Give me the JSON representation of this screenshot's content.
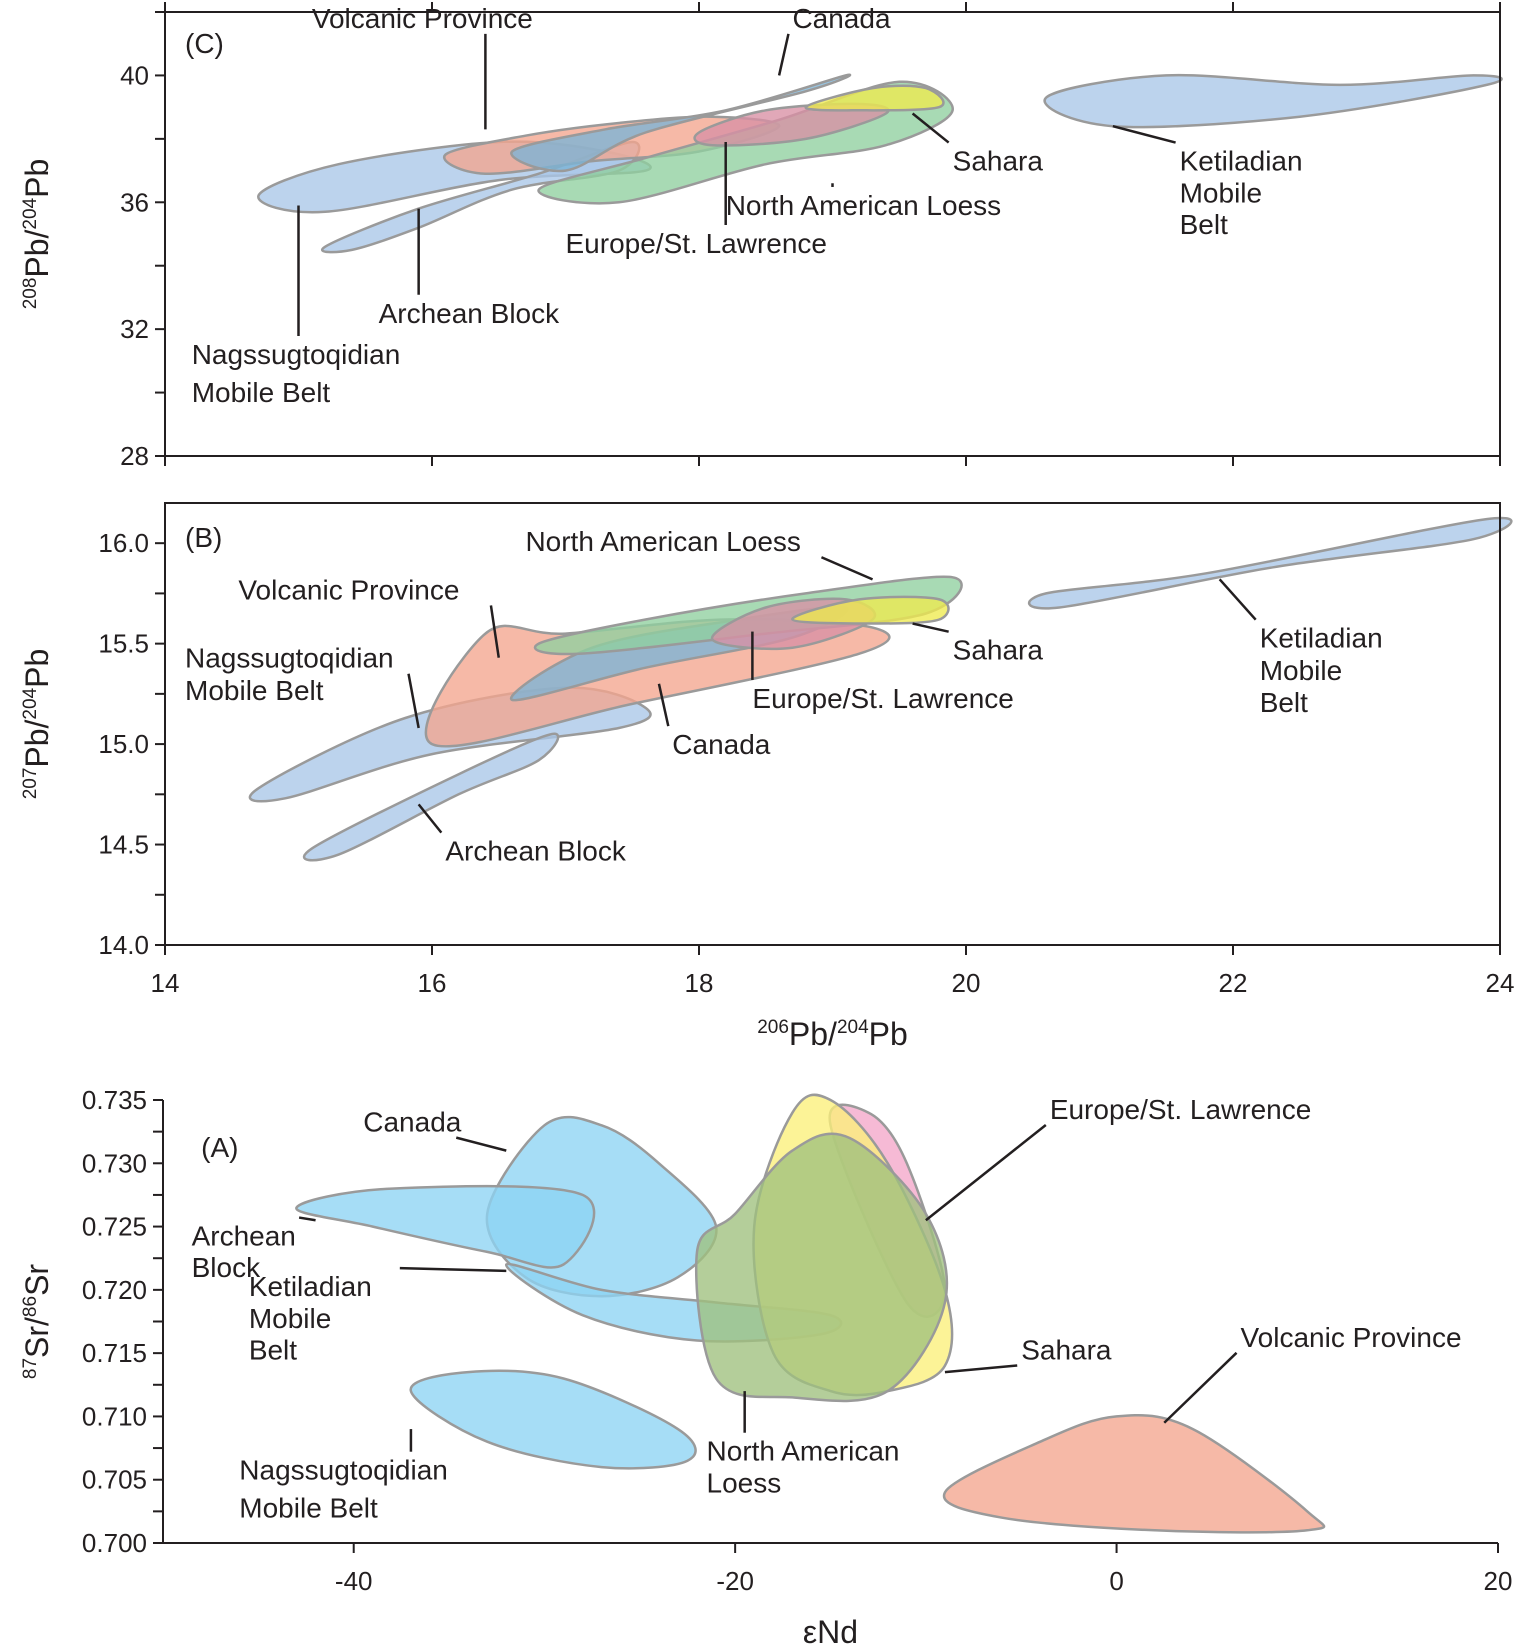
{
  "colors": {
    "Archean Block": "#a9c6e8",
    "Nagssugtoqidian Mobile Belt": "#a9c6e8",
    "Ketiladian Mobile Belt": "#a9c6e8",
    "Canada": "#7bb3d6",
    "Volcanic Province": "#f4a58e",
    "Europe/St. Lawrence": "#d98fa4",
    "North American Loess": "#8fcf9f",
    "Sahara": "#eeea4e",
    "A_blue": "#8dd3f4",
    "A_pink": "#f3a6c9",
    "A_yellow": "#fbef7a",
    "A_green": "#9fc07e"
  },
  "chart_data": [
    {
      "type": "area",
      "panel": "(C)",
      "ylabel": "208Pb/204Pb",
      "xlim": [
        14,
        24
      ],
      "ylim": [
        28,
        42
      ],
      "yticks": [
        "28",
        "32",
        "36",
        "40"
      ],
      "fields": [
        {
          "name": "Nagssugtoqidian Mobile Belt",
          "x": [
            14.7,
            15.3,
            16.5,
            17.3,
            17.6,
            16.5,
            15.2,
            14.7
          ],
          "y": [
            36.2,
            37.2,
            37.9,
            37.6,
            37.0,
            36.7,
            35.7,
            35.8
          ]
        },
        {
          "name": "Archean Block",
          "x": [
            15.2,
            15.9,
            16.8,
            17.5,
            17.4,
            16.6,
            15.9,
            15.4,
            15.2
          ],
          "y": [
            34.6,
            35.8,
            36.9,
            37.9,
            37.0,
            36.4,
            35.2,
            34.5,
            34.6
          ]
        },
        {
          "name": "Volcanic Province",
          "x": [
            16.1,
            16.7,
            17.4,
            18.1,
            18.6,
            18.0,
            17.2,
            16.4,
            16.1
          ],
          "y": [
            37.5,
            38.1,
            38.5,
            38.7,
            38.4,
            37.6,
            37.3,
            36.9,
            37.5
          ]
        },
        {
          "name": "Canada",
          "x": [
            16.6,
            17.3,
            18.2,
            19.1,
            18.8,
            17.6,
            17.0,
            16.6
          ],
          "y": [
            37.6,
            38.3,
            38.9,
            40.0,
            39.5,
            38.2,
            37.0,
            37.6
          ]
        },
        {
          "name": "North American Loess",
          "x": [
            16.8,
            17.6,
            18.6,
            19.5,
            19.9,
            19.4,
            18.5,
            17.4,
            16.8
          ],
          "y": [
            36.4,
            37.4,
            38.6,
            39.8,
            38.9,
            37.8,
            37.2,
            36.0,
            36.4
          ]
        },
        {
          "name": "Europe/St. Lawrence",
          "x": [
            18.0,
            18.5,
            19.2,
            19.4,
            18.8,
            18.1,
            18.0
          ],
          "y": [
            38.2,
            38.9,
            39.1,
            38.8,
            38.0,
            37.8,
            38.2
          ]
        },
        {
          "name": "Sahara",
          "x": [
            18.8,
            19.3,
            19.7,
            19.8,
            19.2,
            18.8
          ],
          "y": [
            39.0,
            39.6,
            39.6,
            39.0,
            38.9,
            39.0
          ]
        },
        {
          "name": "Ketiladian Mobile Belt",
          "x": [
            20.6,
            21.5,
            22.8,
            23.8,
            23.9,
            22.5,
            21.1,
            20.6
          ],
          "y": [
            39.3,
            40.0,
            39.7,
            40.0,
            39.7,
            38.7,
            38.4,
            39.3
          ]
        }
      ],
      "labels": [
        {
          "text": "(C)",
          "x": 14.15,
          "y": 40.7
        },
        {
          "text": "Volcanic Province",
          "x": 15.1,
          "y": 41.5,
          "to": [
            16.4,
            38.3
          ]
        },
        {
          "text": "Canada",
          "x": 18.7,
          "y": 41.5,
          "to": [
            18.6,
            40.0
          ]
        },
        {
          "text": "Sahara",
          "x": 19.9,
          "y": 37.0,
          "to": [
            19.6,
            38.8
          ]
        },
        {
          "text": "North American Loess",
          "x": 18.2,
          "y": 35.6,
          "to": [
            19.0,
            36.6
          ]
        },
        {
          "text": "Europe/St. Lawrence",
          "x": 17.0,
          "y": 34.4,
          "to": [
            18.2,
            37.9
          ]
        },
        {
          "text": "Archean Block",
          "x": 15.6,
          "y": 32.2,
          "to": [
            15.9,
            35.8
          ]
        },
        {
          "text": "Nagssugtoqidian",
          "x": 14.2,
          "y": 30.9,
          "to": [
            15.0,
            35.9
          ]
        },
        {
          "text": "Mobile Belt",
          "x": 14.2,
          "y": 29.7
        },
        {
          "text": "Ketiladian",
          "x": 21.6,
          "y": 37.0,
          "to": [
            21.1,
            38.4
          ]
        },
        {
          "text": "Mobile",
          "x": 21.6,
          "y": 36.0
        },
        {
          "text": "Belt",
          "x": 21.6,
          "y": 35.0
        }
      ]
    },
    {
      "type": "area",
      "panel": "(B)",
      "xlabel": "206Pb/204Pb",
      "ylabel": "207Pb/204Pb",
      "xlim": [
        14,
        24
      ],
      "ylim": [
        14.0,
        16.2
      ],
      "xticks": [
        "14",
        "16",
        "18",
        "20",
        "22",
        "24"
      ],
      "yticks": [
        "14.0",
        "14.5",
        "15.0",
        "15.5",
        "16.0"
      ],
      "fields": [
        {
          "name": "Nagssugtoqidian Mobile Belt",
          "x": [
            14.7,
            15.8,
            17.0,
            17.6,
            17.4,
            16.0,
            14.9,
            14.7
          ],
          "y": [
            14.78,
            15.13,
            15.28,
            15.18,
            15.08,
            14.95,
            14.73,
            14.78
          ]
        },
        {
          "name": "Archean Block",
          "x": [
            15.1,
            16.2,
            16.9,
            16.8,
            16.2,
            15.3,
            15.1
          ],
          "y": [
            14.48,
            14.85,
            15.05,
            14.92,
            14.75,
            14.45,
            14.48
          ]
        },
        {
          "name": "Volcanic Province",
          "x": [
            16.0,
            16.4,
            17.0,
            18.2,
            19.3,
            19.2,
            17.5,
            16.0
          ],
          "y": [
            15.0,
            15.55,
            15.55,
            15.62,
            15.58,
            15.45,
            15.2,
            15.0
          ]
        },
        {
          "name": "Canada",
          "x": [
            16.6,
            17.2,
            18.3,
            19.1,
            18.7,
            17.6,
            16.6
          ],
          "y": [
            15.22,
            15.48,
            15.62,
            15.68,
            15.53,
            15.38,
            15.22
          ]
        },
        {
          "name": "North American Loess",
          "x": [
            16.8,
            17.6,
            18.8,
            19.9,
            19.7,
            18.5,
            17.1,
            16.8
          ],
          "y": [
            15.5,
            15.62,
            15.75,
            15.83,
            15.65,
            15.55,
            15.45,
            15.5
          ]
        },
        {
          "name": "Europe/St. Lawrence",
          "x": [
            18.1,
            18.5,
            19.1,
            19.3,
            18.7,
            18.1
          ],
          "y": [
            15.52,
            15.68,
            15.72,
            15.62,
            15.48,
            15.52
          ]
        },
        {
          "name": "Sahara",
          "x": [
            18.7,
            19.2,
            19.8,
            19.8,
            19.3,
            18.7
          ],
          "y": [
            15.62,
            15.72,
            15.72,
            15.62,
            15.6,
            15.62
          ]
        },
        {
          "name": "Ketiladian Mobile Belt",
          "x": [
            20.6,
            21.8,
            23.9,
            23.8,
            22.3,
            20.7,
            20.6
          ],
          "y": [
            15.75,
            15.85,
            16.12,
            16.02,
            15.88,
            15.68,
            15.75
          ]
        }
      ],
      "labels": [
        {
          "text": "(B)",
          "x": 14.15,
          "y": 15.98
        },
        {
          "text": "North American Loess",
          "x": 16.7,
          "y": 15.96,
          "to": [
            19.3,
            15.82
          ]
        },
        {
          "text": "Volcanic Province",
          "x": 14.55,
          "y": 15.72,
          "to": [
            16.5,
            15.43
          ]
        },
        {
          "text": "Nagssugtoqidian",
          "x": 14.15,
          "y": 15.38,
          "to": [
            15.9,
            15.08
          ]
        },
        {
          "text": "Mobile Belt",
          "x": 14.15,
          "y": 15.22
        },
        {
          "text": "Sahara",
          "x": 19.9,
          "y": 15.42,
          "to": [
            19.6,
            15.6
          ]
        },
        {
          "text": "Europe/St. Lawrence",
          "x": 18.4,
          "y": 15.18,
          "to": [
            18.4,
            15.56
          ]
        },
        {
          "text": "Canada",
          "x": 17.8,
          "y": 14.95,
          "to": [
            17.7,
            15.3
          ]
        },
        {
          "text": "Archean Block",
          "x": 16.1,
          "y": 14.42,
          "to": [
            15.9,
            14.7
          ]
        },
        {
          "text": "Ketiladian",
          "x": 22.2,
          "y": 15.48,
          "to": [
            21.9,
            15.82
          ]
        },
        {
          "text": "Mobile",
          "x": 22.2,
          "y": 15.32
        },
        {
          "text": "Belt",
          "x": 22.2,
          "y": 15.16
        }
      ]
    },
    {
      "type": "area",
      "panel": "(A)",
      "xlabel": "εNd",
      "ylabel": "87Sr/86Sr",
      "xlim": [
        -50,
        20
      ],
      "ylim": [
        0.7,
        0.735
      ],
      "xticks": [
        "-40",
        "-20",
        "0",
        "20"
      ],
      "yticks": [
        "0.700",
        "0.705",
        "0.710",
        "0.715",
        "0.720",
        "0.725",
        "0.730",
        "0.735"
      ],
      "fields": [
        {
          "name": "Canada",
          "colorKey": "A_blue",
          "x": [
            -33,
            -30,
            -27,
            -24,
            -21,
            -23,
            -27,
            -31,
            -33
          ],
          "y": [
            0.726,
            0.733,
            0.733,
            0.73,
            0.725,
            0.721,
            0.7195,
            0.721,
            0.726
          ]
        },
        {
          "name": "Archean Block",
          "colorKey": "A_blue",
          "x": [
            -43,
            -38,
            -28,
            -29,
            -33,
            -39,
            -43
          ],
          "y": [
            0.7265,
            0.728,
            0.7275,
            0.722,
            0.723,
            0.725,
            0.7265
          ]
        },
        {
          "name": "Ketiladian Mobile Belt",
          "colorKey": "A_blue",
          "x": [
            -32,
            -27,
            -21,
            -15,
            -15.5,
            -22,
            -28,
            -32
          ],
          "y": [
            0.722,
            0.72,
            0.719,
            0.718,
            0.7165,
            0.716,
            0.718,
            0.722
          ]
        },
        {
          "name": "Nagssugtoqidian Mobile Belt",
          "colorKey": "A_blue",
          "x": [
            -37,
            -34,
            -29,
            -23,
            -22.5,
            -27,
            -33,
            -37
          ],
          "y": [
            0.712,
            0.7135,
            0.713,
            0.709,
            0.7065,
            0.706,
            0.708,
            0.712
          ]
        },
        {
          "name": "Europe/St. Lawrence",
          "colorKey": "A_pink",
          "x": [
            -15,
            -13,
            -11,
            -9,
            -11,
            -15
          ],
          "y": [
            0.733,
            0.734,
            0.73,
            0.72,
            0.719,
            0.733
          ]
        },
        {
          "name": "Sahara",
          "colorKey": "A_yellow",
          "x": [
            -19,
            -17,
            -15,
            -12,
            -9,
            -9,
            -12,
            -15,
            -18,
            -19
          ],
          "y": [
            0.725,
            0.734,
            0.735,
            0.73,
            0.72,
            0.714,
            0.712,
            0.712,
            0.715,
            0.725
          ]
        },
        {
          "name": "North American Loess",
          "colorKey": "A_green",
          "x": [
            -22,
            -20,
            -17,
            -14,
            -10,
            -9,
            -12,
            -17,
            -21,
            -22
          ],
          "y": [
            0.723,
            0.726,
            0.731,
            0.732,
            0.726,
            0.719,
            0.712,
            0.7115,
            0.713,
            0.723
          ]
        },
        {
          "name": "Volcanic Province",
          "colorKey": "Volcanic Province",
          "x": [
            -9,
            -4,
            0,
            4,
            10,
            10,
            2,
            -6,
            -9
          ],
          "y": [
            0.704,
            0.708,
            0.71,
            0.709,
            0.7025,
            0.701,
            0.701,
            0.702,
            0.704
          ]
        }
      ],
      "labels": [
        {
          "text": "(A)",
          "x": -48,
          "y": 0.7305
        },
        {
          "text": "Canada",
          "x": -39.5,
          "y": 0.7325,
          "to": [
            -32,
            0.731
          ]
        },
        {
          "text": "Archean",
          "x": -48.5,
          "y": 0.7235,
          "to": [
            -42,
            0.7255
          ]
        },
        {
          "text": "Block",
          "x": -48.5,
          "y": 0.721
        },
        {
          "text": "Ketiladian",
          "x": -45.5,
          "y": 0.7195,
          "to": [
            -32,
            0.7215
          ]
        },
        {
          "text": "Mobile",
          "x": -45.5,
          "y": 0.717
        },
        {
          "text": "Belt",
          "x": -45.5,
          "y": 0.7145
        },
        {
          "text": "Nagssugtoqidian",
          "x": -46,
          "y": 0.705,
          "to": [
            -37,
            0.709
          ]
        },
        {
          "text": "Mobile Belt",
          "x": -46,
          "y": 0.702
        },
        {
          "text": "North American",
          "x": -21.5,
          "y": 0.7065,
          "to": [
            -19.5,
            0.712
          ]
        },
        {
          "text": "Loess",
          "x": -21.5,
          "y": 0.704
        },
        {
          "text": "Sahara",
          "x": -5,
          "y": 0.7145,
          "to": [
            -9,
            0.7135
          ]
        },
        {
          "text": "Europe/St. Lawrence",
          "x": -3.5,
          "y": 0.7335,
          "to": [
            -10,
            0.7255
          ]
        },
        {
          "text": "Volcanic Province",
          "x": 6.5,
          "y": 0.7155,
          "to": [
            2.5,
            0.7095
          ]
        }
      ]
    }
  ]
}
